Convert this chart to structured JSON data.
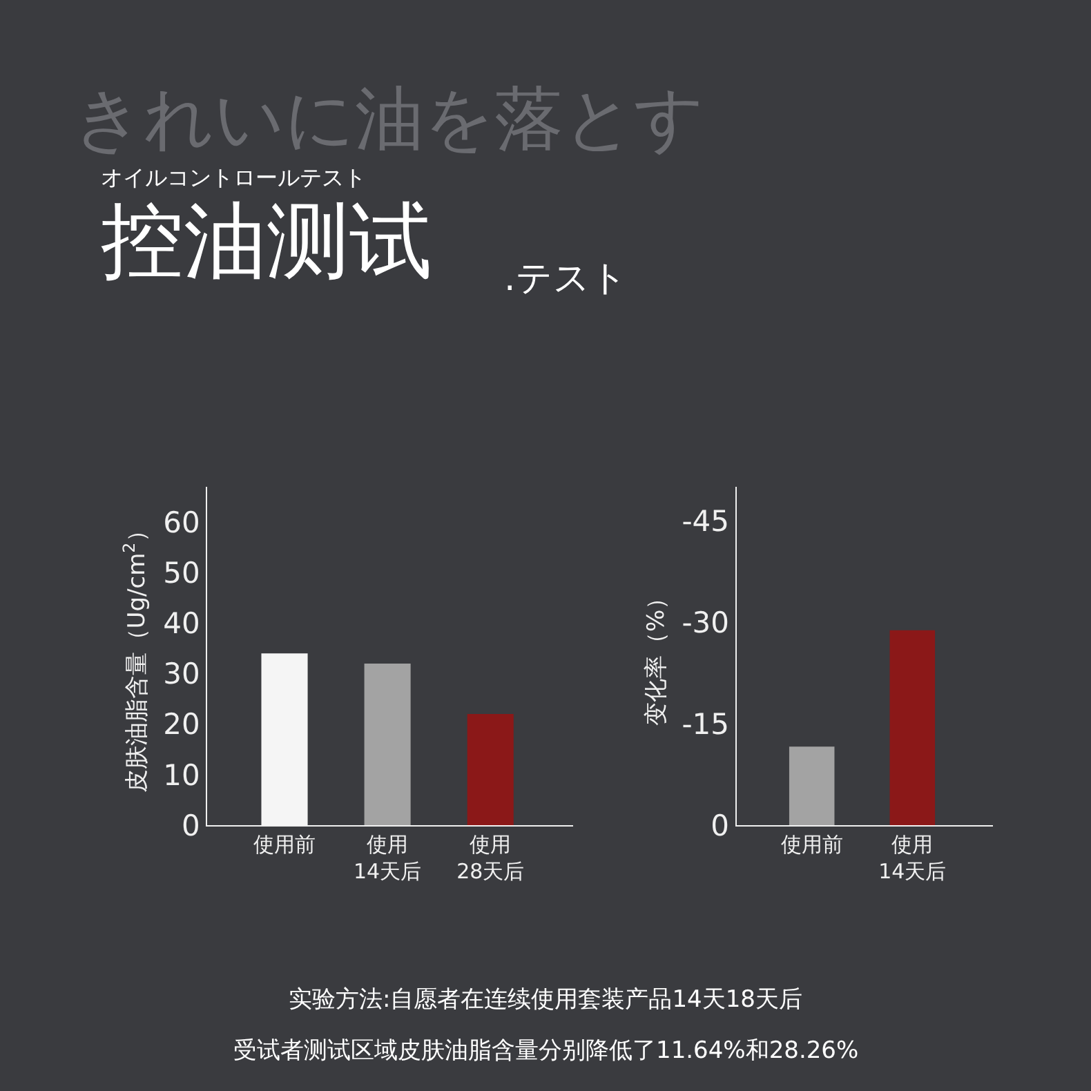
{
  "chart_data": [
    {
      "type": "bar",
      "title": "控油测试",
      "subtitle": ".テスト",
      "annotations": [
        "きれいに油を落とす",
        "オイルコントロールテスト",
        "实验方法:自愿者在连续使用套装产品14天18天后",
        "受试者测试区域皮肤油脂含量分别降低了11.64%和28.26%"
      ],
      "categories": [
        "使用前",
        "使用\n14天后",
        "使用\n28天后"
      ],
      "values": [
        34,
        32,
        22
      ],
      "colors": [
        "#f5f5f5",
        "#a3a3a3",
        "#8b1818"
      ],
      "ylabel": "皮肤油脂含量（Ug/cm$^{2}$）",
      "ylim": [
        0,
        67
      ],
      "yticks": [
        0,
        10,
        20,
        30,
        40,
        50,
        60
      ],
      "grid": false,
      "legend": false
    },
    {
      "type": "bar",
      "categories": [
        "使用前",
        "使用\n14天后"
      ],
      "values": [
        -11.6,
        -28.8
      ],
      "colors": [
        "#a3a3a3",
        "#8b1818"
      ],
      "ylabel": "变化率（%）",
      "ylim": [
        0,
        -50
      ],
      "yticks": [
        0,
        -15,
        -30,
        -45
      ],
      "grid": false,
      "legend": false
    }
  ]
}
